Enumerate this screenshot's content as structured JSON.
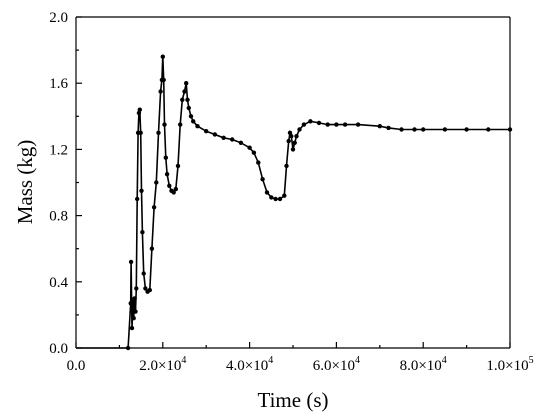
{
  "chart_data": {
    "type": "line",
    "xlabel": "Time  (s)",
    "ylabel": "Mass (kg)",
    "xlim": [
      0,
      100000
    ],
    "ylim": [
      0,
      2.0
    ],
    "grid": false,
    "legend": "none",
    "x_ticks": [
      {
        "value": 0,
        "label": "0.0",
        "sup": ""
      },
      {
        "value": 20000,
        "label": "2.0×10",
        "sup": "4"
      },
      {
        "value": 40000,
        "label": "4.0×10",
        "sup": "4"
      },
      {
        "value": 60000,
        "label": "6.0×10",
        "sup": "4"
      },
      {
        "value": 80000,
        "label": "8.0×10",
        "sup": "4"
      },
      {
        "value": 100000,
        "label": "1.0×10",
        "sup": "5"
      }
    ],
    "y_ticks": [
      {
        "value": 0.0,
        "label": "0.0"
      },
      {
        "value": 0.4,
        "label": "0.4"
      },
      {
        "value": 0.8,
        "label": "0.8"
      },
      {
        "value": 1.2,
        "label": "1.2"
      },
      {
        "value": 1.6,
        "label": "1.6"
      },
      {
        "value": 2.0,
        "label": "2.0"
      }
    ],
    "series": [
      {
        "x": [
          0,
          5000,
          12000,
          12600,
          12700,
          12900,
          13100,
          13300,
          13500,
          13700,
          13900,
          14100,
          14300,
          14500,
          14700,
          14900,
          15100,
          15300,
          15600,
          16000,
          16500,
          17000,
          17500,
          18000,
          18500,
          19000,
          19500,
          19800,
          20000,
          20200,
          20400,
          20700,
          21000,
          21500,
          22000,
          22500,
          23000,
          23500,
          24000,
          24500,
          25000,
          25400,
          25700,
          26000,
          26500,
          27000,
          28000,
          30000,
          32000,
          34000,
          36000,
          38000,
          40000,
          41000,
          42000,
          43000,
          44000,
          45000,
          46000,
          47000,
          48000,
          48500,
          49000,
          49300,
          49600,
          50000,
          50400,
          50800,
          51500,
          52500,
          54000,
          56000,
          58000,
          60000,
          62000,
          65000,
          70000,
          72000,
          75000,
          78000,
          80000,
          85000,
          90000,
          95000,
          100000
        ],
        "y": [
          0.0,
          0.0,
          0.0,
          0.27,
          0.52,
          0.12,
          0.29,
          0.18,
          0.3,
          0.22,
          0.36,
          0.9,
          1.3,
          1.42,
          1.44,
          1.3,
          0.95,
          0.7,
          0.45,
          0.36,
          0.34,
          0.35,
          0.6,
          0.85,
          1.0,
          1.3,
          1.55,
          1.62,
          1.76,
          1.62,
          1.35,
          1.15,
          1.05,
          0.98,
          0.95,
          0.94,
          0.96,
          1.1,
          1.35,
          1.5,
          1.55,
          1.6,
          1.5,
          1.45,
          1.4,
          1.37,
          1.34,
          1.31,
          1.29,
          1.27,
          1.26,
          1.24,
          1.21,
          1.18,
          1.12,
          1.02,
          0.94,
          0.91,
          0.9,
          0.9,
          0.92,
          1.1,
          1.25,
          1.3,
          1.28,
          1.2,
          1.24,
          1.28,
          1.32,
          1.35,
          1.37,
          1.36,
          1.35,
          1.35,
          1.35,
          1.35,
          1.34,
          1.33,
          1.32,
          1.32,
          1.32,
          1.32,
          1.32,
          1.32,
          1.32
        ]
      }
    ]
  }
}
